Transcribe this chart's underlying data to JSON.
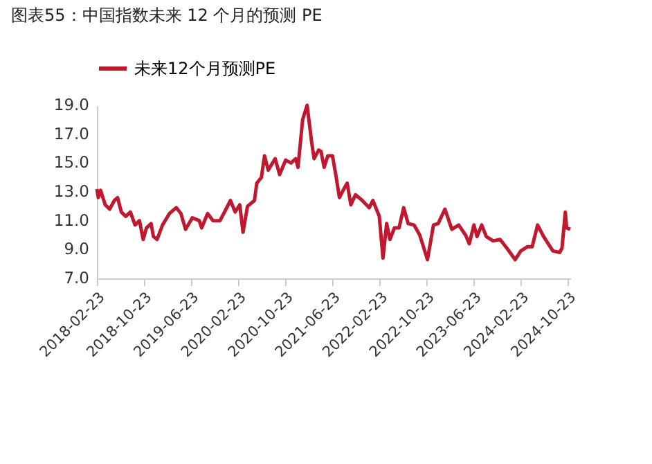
{
  "chart_data": {
    "type": "line",
    "title": "图表55：中国指数未来 12 个月的预测 PE",
    "x": [
      "2018-02-23",
      "2018-03-02",
      "2018-03-14",
      "2018-04-07",
      "2018-04-30",
      "2018-05-24",
      "2018-06-10",
      "2018-06-29",
      "2018-07-22",
      "2018-08-15",
      "2018-09-08",
      "2018-10-01",
      "2018-10-20",
      "2018-11-06",
      "2018-11-30",
      "2018-12-12",
      "2018-12-31",
      "2019-01-28",
      "2019-03-05",
      "2019-04-09",
      "2019-05-03",
      "2019-05-27",
      "2019-07-01",
      "2019-08-06",
      "2019-08-18",
      "2019-09-18",
      "2019-10-16",
      "2019-11-21",
      "2019-12-22",
      "2020-01-14",
      "2020-02-07",
      "2020-03-02",
      "2020-03-19",
      "2020-04-11",
      "2020-05-17",
      "2020-05-29",
      "2020-06-22",
      "2020-07-08",
      "2020-07-27",
      "2020-09-01",
      "2020-09-24",
      "2020-10-25",
      "2020-11-22",
      "2020-12-16",
      "2020-12-28",
      "2021-01-21",
      "2021-02-13",
      "2021-03-09",
      "2021-03-21",
      "2021-04-14",
      "2021-04-26",
      "2021-05-12",
      "2021-05-31",
      "2021-06-24",
      "2021-07-11",
      "2021-07-30",
      "2021-08-22",
      "2021-09-08",
      "2021-09-27",
      "2021-10-21",
      "2021-11-25",
      "2021-12-31",
      "2022-01-19",
      "2022-02-21",
      "2022-03-12",
      "2022-03-31",
      "2022-04-17",
      "2022-05-10",
      "2022-06-03",
      "2022-06-27",
      "2022-07-20",
      "2022-08-20",
      "2022-09-18",
      "2022-10-28",
      "2022-11-28",
      "2022-12-22",
      "2023-01-26",
      "2023-03-03",
      "2023-04-07",
      "2023-05-13",
      "2023-06-01",
      "2023-06-25",
      "2023-07-11",
      "2023-08-04",
      "2023-08-28",
      "2023-10-02",
      "2023-11-07",
      "2023-12-12",
      "2024-01-24",
      "2024-02-22",
      "2024-03-28",
      "2024-04-21",
      "2024-05-19",
      "2024-06-19",
      "2024-08-06",
      "2024-09-10",
      "2024-09-22",
      "2024-10-09",
      "2024-10-16",
      "2024-11-04"
    ],
    "series": [
      {
        "name": "未来12个月预测PE",
        "color": "#c0182f",
        "values": [
          13.2,
          12.6,
          13.1,
          12.1,
          11.8,
          12.4,
          12.6,
          11.6,
          11.3,
          11.6,
          10.7,
          11.0,
          9.7,
          10.5,
          10.8,
          9.9,
          9.7,
          10.7,
          11.5,
          11.9,
          11.5,
          10.4,
          11.2,
          11.0,
          10.5,
          11.5,
          11.0,
          11.0,
          11.8,
          12.4,
          11.6,
          12.1,
          10.2,
          12.0,
          12.4,
          13.6,
          14.0,
          15.5,
          14.5,
          15.3,
          14.2,
          15.2,
          15.0,
          15.3,
          14.7,
          18.0,
          19.0,
          16.4,
          15.3,
          15.9,
          15.8,
          14.7,
          15.5,
          15.5,
          14.2,
          12.6,
          13.2,
          13.6,
          12.1,
          12.8,
          12.4,
          11.9,
          12.4,
          11.3,
          8.4,
          10.8,
          9.7,
          10.5,
          10.5,
          11.9,
          10.8,
          10.7,
          10.0,
          8.3,
          10.7,
          10.8,
          11.8,
          10.4,
          10.7,
          10.0,
          9.4,
          10.7,
          9.9,
          10.7,
          9.9,
          9.6,
          9.7,
          9.1,
          8.3,
          8.9,
          9.2,
          9.2,
          10.7,
          9.9,
          8.9,
          8.8,
          9.1,
          11.6,
          10.5,
          10.4
        ]
      }
    ],
    "xlim": [
      "2018-02-23",
      "2024-11-04"
    ],
    "xticks": [
      "2018-02-23",
      "2018-10-23",
      "2019-06-23",
      "2020-02-23",
      "2020-10-23",
      "2021-06-23",
      "2022-02-23",
      "2022-10-23",
      "2023-06-23",
      "2024-02-23",
      "2024-10-23"
    ],
    "ylim": [
      7,
      19
    ],
    "yticks": [
      {
        "value": 7,
        "label": "7.0"
      },
      {
        "value": 9,
        "label": "9.0"
      },
      {
        "value": 11,
        "label": "11.0"
      },
      {
        "value": 13,
        "label": "13.0"
      },
      {
        "value": 15,
        "label": "15.0"
      },
      {
        "value": 17,
        "label": "17.0"
      },
      {
        "value": 19,
        "label": "19.0"
      }
    ],
    "legend": "top",
    "grid": false,
    "marker": "none",
    "line_style": "solid"
  }
}
